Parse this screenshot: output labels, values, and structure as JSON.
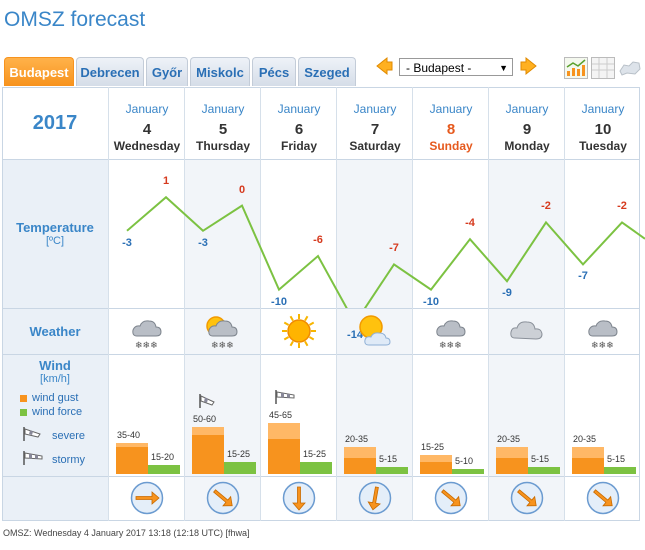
{
  "page": {
    "title": "OMSZ forecast",
    "footer": "OMSZ: Wednesday 4 January 2017 13:18  (12:18  UTC)  [fhwa]"
  },
  "tabs": [
    {
      "label": "Budapest",
      "active": true
    },
    {
      "label": "Debrecen",
      "active": false
    },
    {
      "label": "Győr",
      "active": false
    },
    {
      "label": "Miskolc",
      "active": false
    },
    {
      "label": "Pécs",
      "active": false
    },
    {
      "label": "Szeged",
      "active": false
    }
  ],
  "city_select": {
    "value": "- Budapest -"
  },
  "year": "2017",
  "rows": {
    "temperature": {
      "label": "Temperature",
      "unit": "[ºC]"
    },
    "weather": {
      "label": "Weather"
    },
    "wind": {
      "label": "Wind",
      "unit": "[km/h]",
      "legend_gust": "wind gust",
      "legend_force": "wind force",
      "legend_severe": "severe",
      "legend_stormy": "stormy"
    }
  },
  "colors": {
    "gust": "#f7931e",
    "gust_light": "#ffb866",
    "force": "#7cc242",
    "line": "#7cc242",
    "accent": "#3a86c8"
  },
  "days": [
    {
      "month": "January",
      "date": "4",
      "weekday": "Wednesday",
      "sunday": false,
      "tmin": -3,
      "tmax": 1,
      "weather_icon": "snow-cloud-icon",
      "gust": "35-40",
      "force": "15-20",
      "gust_max": 40,
      "gust_min": 35,
      "force_max": 20,
      "warn": null,
      "dir": "east"
    },
    {
      "month": "January",
      "date": "5",
      "weekday": "Thursday",
      "sunday": false,
      "tmin": -3,
      "tmax": 0,
      "weather_icon": "sun-snow-cloud-icon",
      "gust": "50-60",
      "force": "15-25",
      "gust_max": 60,
      "gust_min": 50,
      "force_max": 25,
      "warn": "severe",
      "dir": "southeast"
    },
    {
      "month": "January",
      "date": "6",
      "weekday": "Friday",
      "sunday": false,
      "tmin": -10,
      "tmax": -6,
      "weather_icon": "sun-icon",
      "gust": "45-65",
      "force": "15-25",
      "gust_max": 65,
      "gust_min": 45,
      "force_max": 25,
      "warn": "stormy",
      "dir": "south"
    },
    {
      "month": "January",
      "date": "7",
      "weekday": "Saturday",
      "sunday": false,
      "tmin": -14,
      "tmax": -7,
      "weather_icon": "sun-cloud-icon",
      "gust": "20-35",
      "force": "5-15",
      "gust_max": 35,
      "gust_min": 20,
      "force_max": 15,
      "warn": null,
      "dir": "south-southwest"
    },
    {
      "month": "January",
      "date": "8",
      "weekday": "Sunday",
      "sunday": true,
      "tmin": -10,
      "tmax": -4,
      "weather_icon": "snow-cloud-icon",
      "gust": "15-25",
      "force": "5-10",
      "gust_max": 25,
      "gust_min": 15,
      "force_max": 10,
      "warn": null,
      "dir": "southeast"
    },
    {
      "month": "January",
      "date": "9",
      "weekday": "Monday",
      "sunday": false,
      "tmin": -9,
      "tmax": -2,
      "weather_icon": "cloud-icon",
      "gust": "20-35",
      "force": "5-15",
      "gust_max": 35,
      "gust_min": 20,
      "force_max": 15,
      "warn": null,
      "dir": "southeast"
    },
    {
      "month": "January",
      "date": "10",
      "weekday": "Tuesday",
      "sunday": false,
      "tmin": -7,
      "tmax": -2,
      "weather_icon": "snow-cloud-icon",
      "gust": "20-35",
      "force": "5-15",
      "gust_max": 35,
      "gust_min": 20,
      "force_max": 15,
      "warn": null,
      "dir": "southeast"
    }
  ]
}
